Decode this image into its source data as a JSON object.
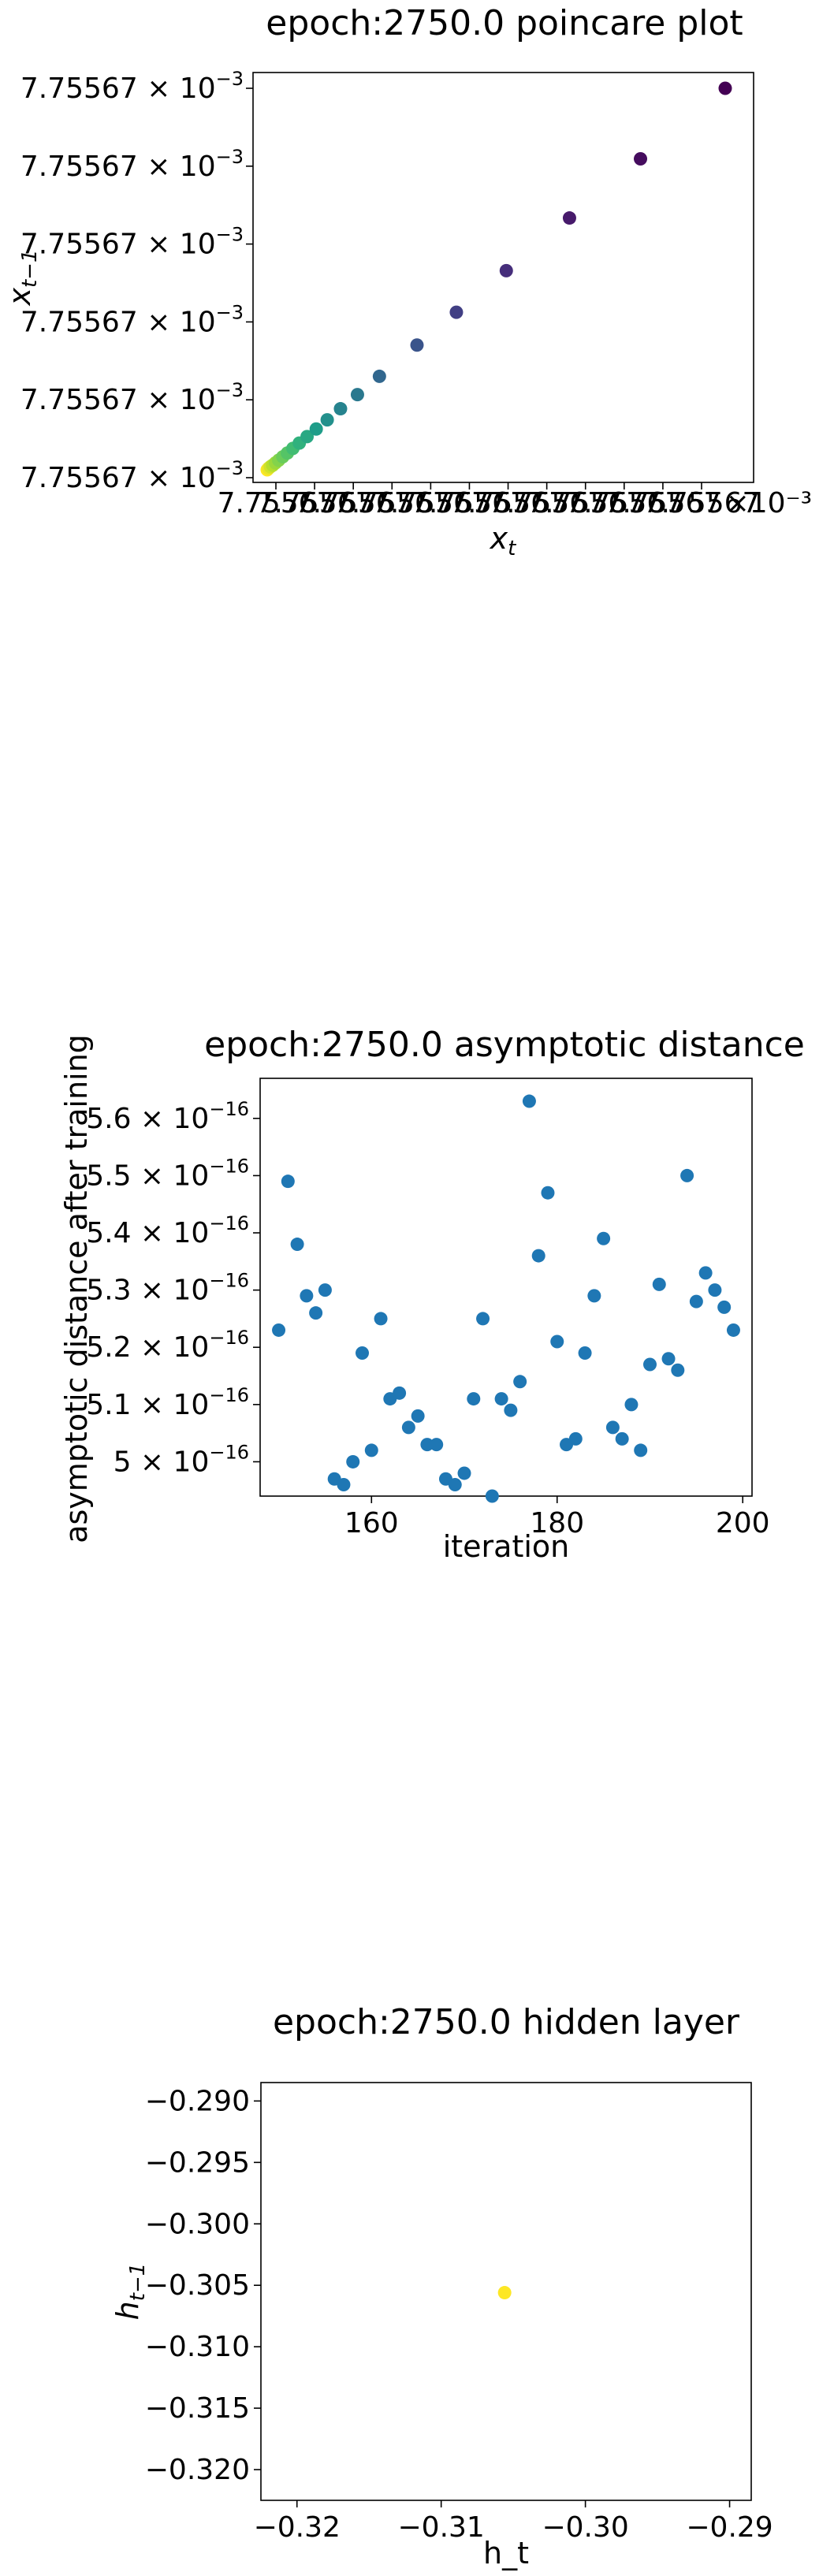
{
  "chart_data": [
    {
      "type": "scatter",
      "title": "epoch:2750.0 poincare plot",
      "xlabel": "x",
      "xlabel_sub": "t",
      "ylabel": "x",
      "ylabel_sub": "t−1",
      "colormap": "viridis",
      "y_tick_mantissa": "7.75567",
      "y_tick_exponent": "−3",
      "y_tick_count": 6,
      "x_tick_labels": [
        "7.75567",
        "7.75567",
        "7.75567",
        "7.75567",
        "7.75567",
        "7.75567",
        "7.75567",
        "7.75567",
        "7.75567",
        "7.75567",
        "7.75567",
        "7.75567"
      ],
      "x_tick_suffix": "×10⁻³",
      "points_relative": [
        {
          "x": 0.0,
          "y": 0.0,
          "t": 1.0
        },
        {
          "x": 0.003,
          "y": 0.004,
          "t": 0.97
        },
        {
          "x": 0.007,
          "y": 0.008,
          "t": 0.93
        },
        {
          "x": 0.012,
          "y": 0.012,
          "t": 0.89
        },
        {
          "x": 0.018,
          "y": 0.018,
          "t": 0.85
        },
        {
          "x": 0.025,
          "y": 0.025,
          "t": 0.81
        },
        {
          "x": 0.034,
          "y": 0.034,
          "t": 0.77
        },
        {
          "x": 0.044,
          "y": 0.044,
          "t": 0.73
        },
        {
          "x": 0.056,
          "y": 0.056,
          "t": 0.69
        },
        {
          "x": 0.07,
          "y": 0.07,
          "t": 0.64
        },
        {
          "x": 0.087,
          "y": 0.087,
          "t": 0.6
        },
        {
          "x": 0.107,
          "y": 0.107,
          "t": 0.55
        },
        {
          "x": 0.131,
          "y": 0.131,
          "t": 0.5
        },
        {
          "x": 0.16,
          "y": 0.16,
          "t": 0.45
        },
        {
          "x": 0.197,
          "y": 0.197,
          "t": 0.4
        },
        {
          "x": 0.245,
          "y": 0.245,
          "t": 0.33
        },
        {
          "x": 0.327,
          "y": 0.327,
          "t": 0.26
        },
        {
          "x": 0.413,
          "y": 0.413,
          "t": 0.19
        },
        {
          "x": 0.522,
          "y": 0.522,
          "t": 0.13
        },
        {
          "x": 0.66,
          "y": 0.66,
          "t": 0.07
        },
        {
          "x": 0.815,
          "y": 0.815,
          "t": 0.03
        },
        {
          "x": 1.0,
          "y": 1.0,
          "t": 0.0
        }
      ],
      "grid": false
    },
    {
      "type": "scatter",
      "title": "epoch:2750.0 asymptotic distance",
      "xlabel": "iteration",
      "ylabel": "asymptotic distance after training",
      "xlim": [
        148,
        201
      ],
      "ylim": [
        4.94e-16,
        5.67e-16
      ],
      "x_ticks": [
        160,
        180,
        200
      ],
      "y_ticks": [
        {
          "value": 5e-16,
          "mantissa": "5",
          "exponent": "−16"
        },
        {
          "value": 5.1e-16,
          "mantissa": "5.1",
          "exponent": "−16"
        },
        {
          "value": 5.2e-16,
          "mantissa": "5.2",
          "exponent": "−16"
        },
        {
          "value": 5.3e-16,
          "mantissa": "5.3",
          "exponent": "−16"
        },
        {
          "value": 5.4e-16,
          "mantissa": "5.4",
          "exponent": "−16"
        },
        {
          "value": 5.5e-16,
          "mantissa": "5.5",
          "exponent": "−16"
        },
        {
          "value": 5.6e-16,
          "mantissa": "5.6",
          "exponent": "−16"
        }
      ],
      "color": "#1f77b4",
      "x": [
        150,
        151,
        152,
        153,
        154,
        155,
        156,
        157,
        158,
        159,
        160,
        161,
        162,
        163,
        164,
        165,
        166,
        167,
        168,
        169,
        170,
        171,
        172,
        173,
        174,
        175,
        176,
        177,
        178,
        179,
        180,
        181,
        182,
        183,
        184,
        185,
        186,
        187,
        188,
        189,
        190,
        191,
        192,
        193,
        194,
        195,
        196,
        197,
        198,
        199
      ],
      "y": [
        5.23e-16,
        5.49e-16,
        5.38e-16,
        5.29e-16,
        5.26e-16,
        5.3e-16,
        4.97e-16,
        4.96e-16,
        5e-16,
        5.19e-16,
        5.02e-16,
        5.25e-16,
        5.11e-16,
        5.12e-16,
        5.06e-16,
        5.08e-16,
        5.03e-16,
        5.03e-16,
        4.97e-16,
        4.96e-16,
        4.98e-16,
        5.11e-16,
        5.25e-16,
        4.94e-16,
        5.11e-16,
        5.09e-16,
        5.14e-16,
        5.63e-16,
        5.36e-16,
        5.47e-16,
        5.21e-16,
        5.03e-16,
        5.04e-16,
        5.19e-16,
        5.29e-16,
        5.39e-16,
        5.06e-16,
        5.04e-16,
        5.1e-16,
        5.02e-16,
        5.17e-16,
        5.31e-16,
        5.18e-16,
        5.16e-16,
        5.5e-16,
        5.28e-16,
        5.33e-16,
        5.3e-16,
        5.27e-16,
        5.23e-16
      ],
      "grid": false
    },
    {
      "type": "scatter",
      "title": "epoch:2750.0 hidden layer",
      "xlabel": "h_t",
      "ylabel": "h",
      "ylabel_sub": "t−1",
      "xlim": [
        -0.3225,
        -0.2885
      ],
      "ylim": [
        -0.3225,
        -0.2885
      ],
      "x_ticks": [
        -0.32,
        -0.31,
        -0.3,
        -0.29
      ],
      "x_tick_labels": [
        "−0.32",
        "−0.31",
        "−0.30",
        "−0.29"
      ],
      "y_ticks": [
        -0.29,
        -0.295,
        -0.3,
        -0.305,
        -0.31,
        -0.315,
        -0.32
      ],
      "y_tick_labels": [
        "−0.290",
        "−0.295",
        "−0.300",
        "−0.305",
        "−0.310",
        "−0.315",
        "−0.320"
      ],
      "x": [
        -0.3056
      ],
      "y": [
        -0.3056
      ],
      "color": "#fde725",
      "grid": false
    }
  ]
}
